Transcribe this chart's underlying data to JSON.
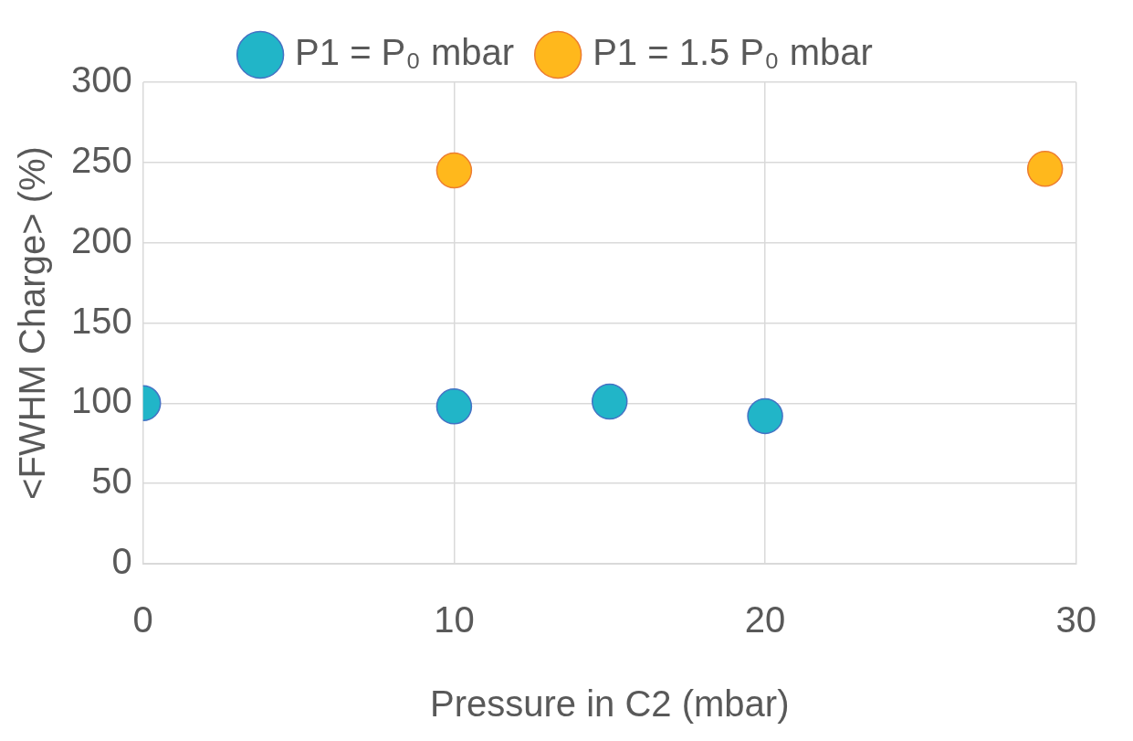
{
  "chart_data": {
    "type": "scatter",
    "xlabel": "Pressure in C2 (mbar)",
    "ylabel": "<FWHM Charge> (%)",
    "xlim": [
      0,
      30
    ],
    "xticks": [
      0,
      10,
      20,
      30
    ],
    "ylim": [
      0,
      300
    ],
    "yticks": [
      0,
      50,
      100,
      150,
      200,
      250,
      300
    ],
    "grid": true,
    "legend": "top",
    "marker": "circle",
    "series": [
      {
        "name": "P1 = P₀ mbar",
        "color": "#21b5c8",
        "x": [
          0,
          10,
          15,
          20
        ],
        "values": [
          100,
          98,
          101,
          92
        ]
      },
      {
        "name": "P1 = 1.5 P₀ mbar",
        "color": "#ffb81c",
        "x": [
          10,
          29
        ],
        "values": [
          245,
          246
        ]
      }
    ]
  }
}
